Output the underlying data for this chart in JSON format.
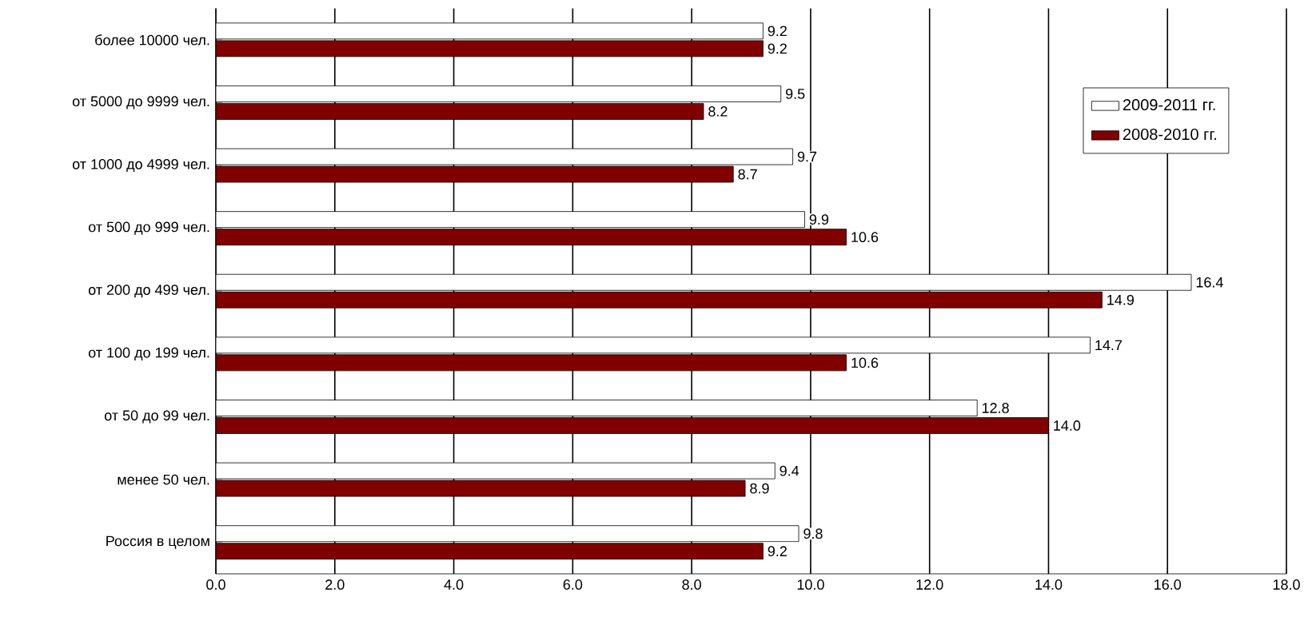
{
  "chart_data": {
    "type": "bar",
    "orientation": "horizontal",
    "categories": [
      "более 10000 чел.",
      "от 5000 до 9999 чел.",
      "от 1000 до 4999 чел.",
      "от 500 до 999 чел.",
      "от 200 до 499 чел.",
      "от 100 до 199 чел.",
      "от 50 до 99 чел.",
      "менее 50 чел.",
      "Россия в целом"
    ],
    "series": [
      {
        "name": "2009-2011 гг.",
        "color": "#ffffff",
        "values": [
          9.2,
          9.5,
          9.7,
          9.9,
          16.4,
          14.7,
          12.8,
          9.4,
          9.8
        ],
        "value_labels": [
          "9.2",
          "9.5",
          "9.7",
          "9.9",
          "16.4",
          "14.7",
          "12.8",
          "9.4",
          "9.8"
        ]
      },
      {
        "name": "2008-2010 гг.",
        "color": "#800000",
        "values": [
          9.2,
          8.2,
          8.7,
          10.6,
          14.9,
          10.6,
          14.0,
          8.9,
          9.2
        ],
        "value_labels": [
          "9.2",
          "8.2",
          "8.7",
          "10.6",
          "14.9",
          "10.6",
          "14.0",
          "8.9",
          "9.2"
        ]
      }
    ],
    "xlim": [
      0,
      18
    ],
    "xticks": [
      {
        "value": 0,
        "label": "0.0"
      },
      {
        "value": 2,
        "label": "2.0"
      },
      {
        "value": 4,
        "label": "4.0"
      },
      {
        "value": 6,
        "label": "6.0"
      },
      {
        "value": 8,
        "label": "8.0"
      },
      {
        "value": 10,
        "label": "10.0"
      },
      {
        "value": 12,
        "label": "12.0"
      },
      {
        "value": 14,
        "label": "14.0"
      },
      {
        "value": 16,
        "label": "16.0"
      },
      {
        "value": 18,
        "label": "18.0"
      }
    ],
    "grid": "x",
    "legend": "top right"
  }
}
